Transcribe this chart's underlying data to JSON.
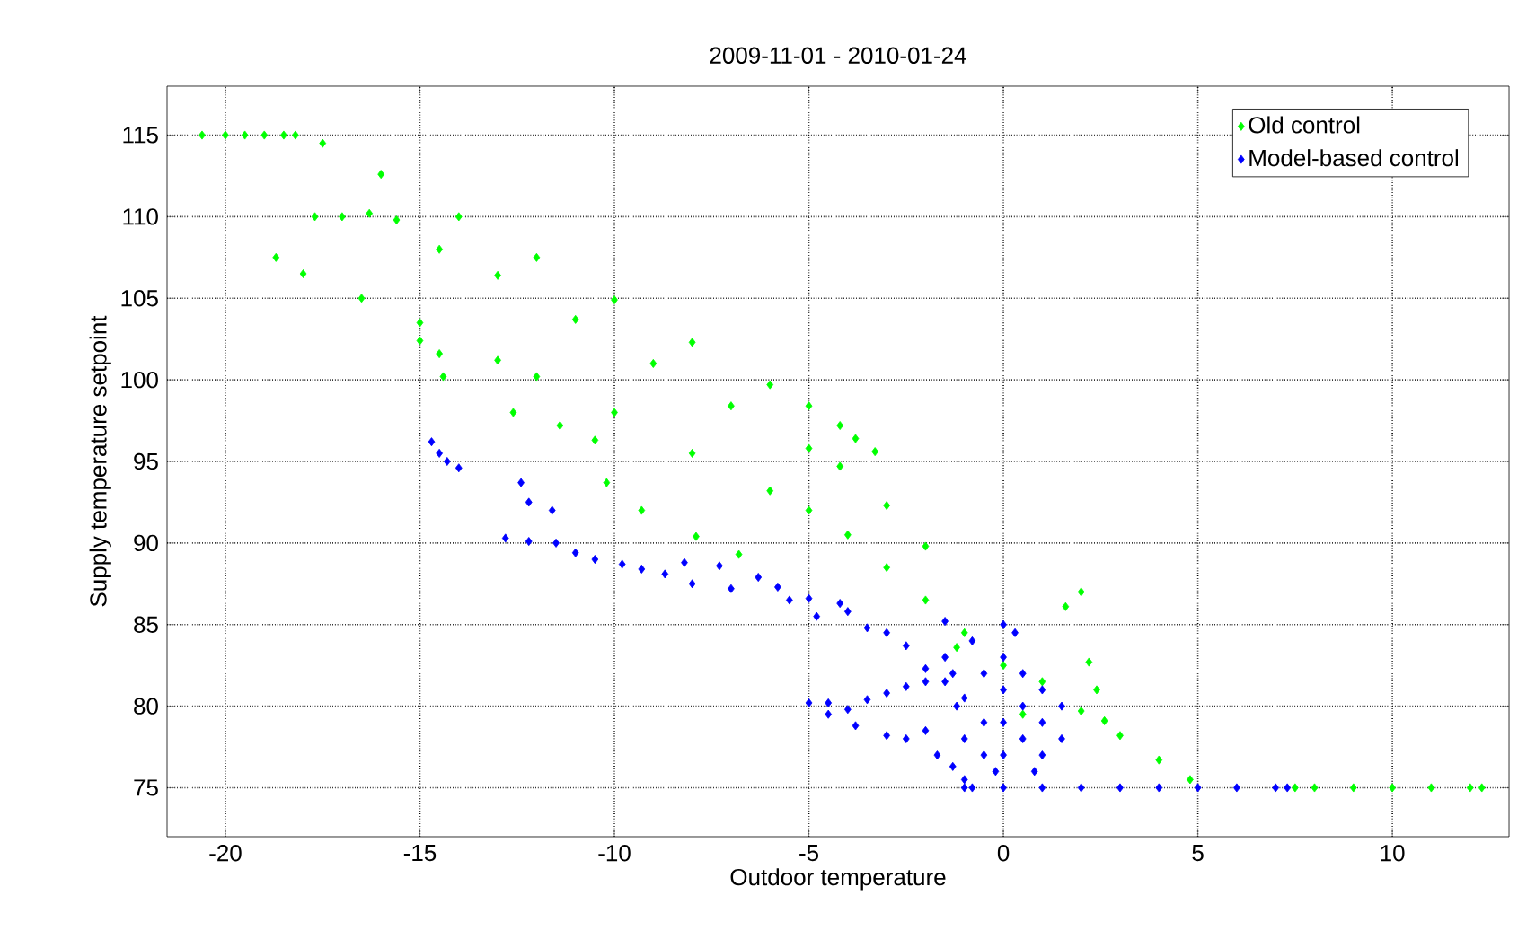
{
  "chart_data": {
    "type": "scatter",
    "title": "2009-11-01 - 2010-01-24",
    "xlabel": "Outdoor temperature",
    "ylabel": "Supply temperature setpoint",
    "xlim": [
      -21.5,
      13
    ],
    "ylim": [
      72,
      118
    ],
    "xticks": [
      -20,
      -15,
      -10,
      -5,
      0,
      5,
      10
    ],
    "yticks": [
      75,
      80,
      85,
      90,
      95,
      100,
      105,
      110,
      115
    ],
    "grid": true,
    "legend": "top right",
    "marker": "diamond",
    "series": [
      {
        "name": "Old control",
        "color": "#00ff00",
        "x": [
          -20.6,
          -20,
          -19.5,
          -19,
          -18.5,
          -18.2,
          -17.5,
          -16,
          -14,
          -12,
          -10,
          -8,
          -6,
          -5,
          -4.2,
          -3.8,
          -3.3,
          -17.7,
          -17,
          -16.3,
          -15.6,
          -14.5,
          -13,
          -11,
          -9,
          -7,
          -5,
          -4.2,
          -3,
          -2,
          -18.7,
          -18,
          -16.5,
          -15,
          -13,
          -12,
          -10,
          -8,
          -6,
          -5,
          -4,
          -3,
          -2,
          -1,
          0,
          1,
          2,
          3,
          4,
          4.8,
          7.5,
          8,
          9,
          10,
          11,
          12,
          12.3,
          -10.5,
          -10.2,
          -9.3,
          -7.9,
          -6.8,
          -14.4,
          -14.5,
          -15,
          -12.6,
          -11.4,
          1.6,
          2,
          2.2,
          2.4,
          2.6,
          -1.2,
          0.5
        ],
        "values": [
          115,
          115,
          115,
          115,
          115,
          115,
          114.5,
          112.6,
          110,
          107.5,
          104.9,
          102.3,
          99.7,
          98.4,
          97.2,
          96.4,
          95.6,
          110,
          110,
          110.2,
          109.8,
          108,
          106.4,
          103.7,
          101,
          98.4,
          95.8,
          94.7,
          92.3,
          89.8,
          107.5,
          106.5,
          105,
          103.5,
          101.2,
          100.2,
          98,
          95.5,
          93.2,
          92,
          90.5,
          88.5,
          86.5,
          84.5,
          82.5,
          81.5,
          79.7,
          78.2,
          76.7,
          75.5,
          75,
          75,
          75,
          75,
          75,
          75,
          75,
          96.3,
          93.7,
          92,
          90.4,
          89.3,
          100.2,
          101.6,
          102.4,
          98,
          97.2,
          86.1,
          87,
          82.7,
          81,
          79.1,
          83.6,
          79.5
        ]
      },
      {
        "name": "Model-based control",
        "color": "#0000ff",
        "x": [
          -14.7,
          -14.5,
          -14.3,
          -14,
          -12.4,
          -12.2,
          -11.6,
          -12.8,
          -12.2,
          -11.5,
          -11,
          -10.5,
          -9.8,
          -9.3,
          -8.7,
          -8.2,
          -8,
          -7.3,
          -7,
          -6.3,
          -5.8,
          -5.5,
          -5,
          -4.8,
          -4.2,
          -4,
          -3.5,
          -3,
          -2.5,
          -2,
          -1.5,
          -5,
          -4.5,
          -4,
          -3.5,
          -3,
          -2.5,
          -2,
          -4.5,
          -3.8,
          -3,
          -2.5,
          -2,
          -1.7,
          -1.3,
          -1,
          -0.8,
          -1.5,
          -1.5,
          -1.2,
          -1,
          -0.8,
          -0.5,
          -0.5,
          -0.5,
          0,
          0,
          0,
          0,
          0,
          0.3,
          0.5,
          0.5,
          0.5,
          1,
          1,
          1,
          1.5,
          1.5,
          -1.3,
          -1,
          -0.2,
          0.8,
          -1,
          0,
          1,
          2,
          3,
          4,
          5,
          6,
          7,
          7.3
        ],
        "values": [
          96.2,
          95.5,
          95,
          94.6,
          93.7,
          92.5,
          92,
          90.3,
          90.1,
          90,
          89.4,
          89,
          88.7,
          88.4,
          88.1,
          88.8,
          87.5,
          88.6,
          87.2,
          87.9,
          87.3,
          86.5,
          86.6,
          85.5,
          86.3,
          85.8,
          84.8,
          84.5,
          83.7,
          82.3,
          81.5,
          80.2,
          80.2,
          79.8,
          80.4,
          80.8,
          81.2,
          81.5,
          79.5,
          78.8,
          78.2,
          78,
          78.5,
          77,
          76.3,
          75.5,
          75,
          85.2,
          83,
          80,
          78,
          84,
          82,
          79,
          77,
          85,
          83,
          81,
          79,
          77,
          84.5,
          82,
          80,
          78,
          81,
          79,
          77,
          80,
          78,
          82,
          80.5,
          76,
          76,
          75,
          75,
          75,
          75,
          75,
          75,
          75,
          75,
          75,
          75
        ]
      }
    ]
  }
}
